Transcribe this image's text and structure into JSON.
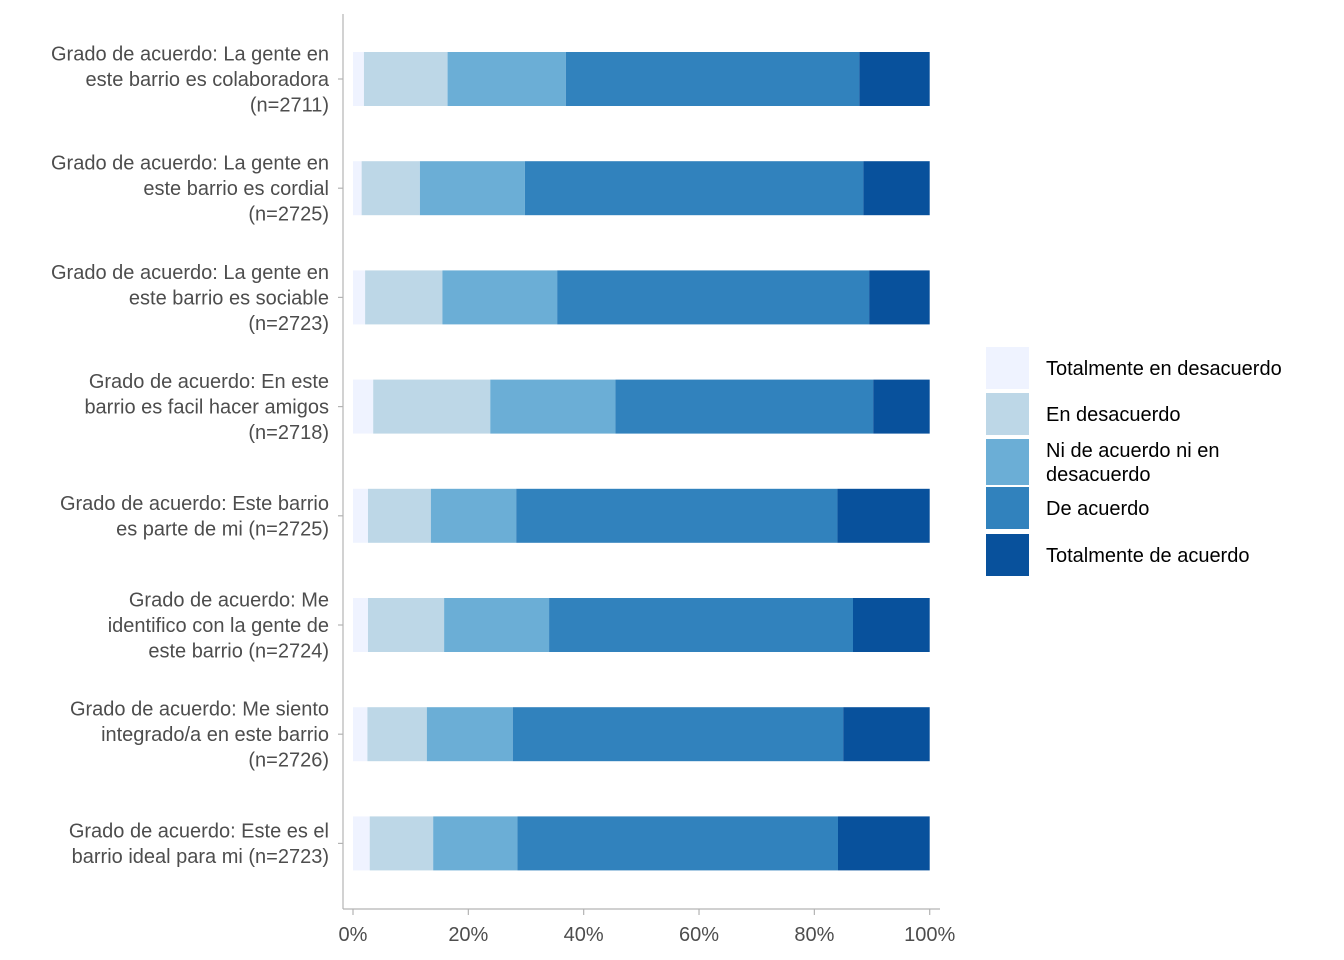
{
  "chart_data": {
    "type": "bar",
    "orientation": "horizontal",
    "stacked": true,
    "title": "",
    "xlabel": "",
    "ylabel": "",
    "xlim": [
      0,
      100
    ],
    "x_ticks": [
      "0%",
      "20%",
      "40%",
      "60%",
      "80%",
      "100%"
    ],
    "grid": false,
    "legend_position": "right",
    "categories": [
      [
        "Grado de acuerdo: La gente en",
        "este barrio es colaboradora",
        "(n=2711)"
      ],
      [
        "Grado de acuerdo: La gente en",
        "este barrio es cordial",
        "(n=2725)"
      ],
      [
        "Grado de acuerdo: La gente en",
        "este barrio es sociable",
        "(n=2723)"
      ],
      [
        "Grado de acuerdo: En este",
        "barrio es facil hacer amigos",
        "(n=2718)"
      ],
      [
        "Grado de acuerdo: Este barrio",
        "es parte de mi (n=2725)"
      ],
      [
        "Grado de acuerdo: Me",
        "identifico con la gente de",
        "este barrio (n=2724)"
      ],
      [
        "Grado de acuerdo: Me siento",
        "integrado/a en este barrio",
        "(n=2726)"
      ],
      [
        "Grado de acuerdo: Este es el",
        "barrio ideal para mi (n=2723)"
      ]
    ],
    "series": [
      {
        "name": [
          "Totalmente en desacuerdo"
        ],
        "color": "#eff3ff",
        "values": [
          1.9,
          1.5,
          2.1,
          3.5,
          2.6,
          2.6,
          2.5,
          2.9
        ]
      },
      {
        "name": [
          "En desacuerdo"
        ],
        "color": "#bdd7e7",
        "values": [
          14.5,
          10.1,
          13.4,
          20.3,
          10.9,
          13.2,
          10.3,
          11.0
        ]
      },
      {
        "name": [
          "Ni de acuerdo ni en",
          "desacuerdo"
        ],
        "color": "#6baed6",
        "values": [
          20.5,
          18.2,
          19.9,
          21.7,
          14.8,
          18.2,
          14.9,
          14.6
        ]
      },
      {
        "name": [
          "De acuerdo"
        ],
        "color": "#3182bd",
        "values": [
          50.9,
          58.7,
          54.1,
          44.7,
          55.7,
          52.7,
          57.3,
          55.6
        ]
      },
      {
        "name": [
          "Totalmente de acuerdo"
        ],
        "color": "#08519c",
        "values": [
          12.2,
          11.5,
          10.5,
          9.8,
          16.0,
          13.3,
          15.0,
          15.9
        ]
      }
    ]
  }
}
